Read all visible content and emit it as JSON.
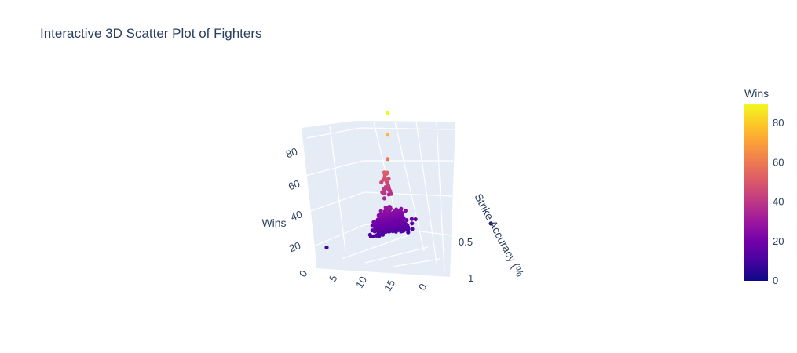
{
  "chart_data": {
    "type": "scatter",
    "title": "Interactive 3D Scatter Plot of Fighters",
    "axes": {
      "z": {
        "label": "Wins",
        "ticks": [
          "20",
          "40",
          "60",
          "80"
        ],
        "range": [
          0,
          90
        ]
      },
      "x": {
        "label": "",
        "ticks": [
          "0",
          "5",
          "10",
          "15"
        ]
      },
      "y": {
        "label": "Strike Accuracy (%",
        "ticks": [
          "0",
          "0.5",
          "1"
        ]
      }
    },
    "colorbar": {
      "title": "Wins",
      "ticks": [
        "0",
        "20",
        "40",
        "60",
        "80"
      ],
      "range": [
        0,
        90
      ],
      "colorscale": [
        "#0d0887",
        "#46039f",
        "#7201a8",
        "#9c179e",
        "#bd3786",
        "#d8576b",
        "#ed7953",
        "#fb9f3a",
        "#fdca26",
        "#f0f921"
      ]
    },
    "highlight_points": [
      {
        "x": 4.0,
        "y": 0.5,
        "wins": 90
      },
      {
        "x": 4.0,
        "y": 0.5,
        "wins": 76
      },
      {
        "x": 4.0,
        "y": 0.5,
        "wins": 60
      },
      {
        "x": 0.0,
        "y": 0.1,
        "wins": 10
      },
      {
        "x": 18.0,
        "y": 0.9,
        "wins": 6
      }
    ]
  }
}
